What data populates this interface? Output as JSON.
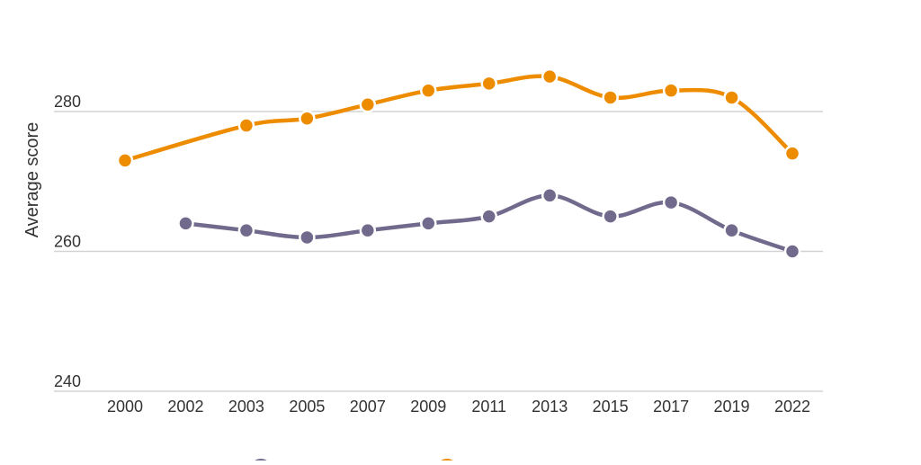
{
  "chart_data": {
    "type": "line",
    "title": "",
    "xlabel": "",
    "ylabel": "Average score",
    "ylim": [
      240,
      290
    ],
    "yticks": [
      240,
      260,
      280
    ],
    "grid": true,
    "legend_placement": "bottom",
    "categories": [
      "2000",
      "2002",
      "2003",
      "2005",
      "2007",
      "2009",
      "2011",
      "2013",
      "2015",
      "2017",
      "2019",
      "2022"
    ],
    "series": [
      {
        "color": "#716a8c",
        "values": [
          null,
          264,
          263,
          262,
          263,
          264,
          265,
          268,
          265,
          267,
          263,
          260
        ]
      },
      {
        "color": "#ee8c00",
        "values": [
          273,
          null,
          278,
          279,
          281,
          283,
          284,
          285,
          282,
          283,
          282,
          274
        ]
      }
    ]
  }
}
